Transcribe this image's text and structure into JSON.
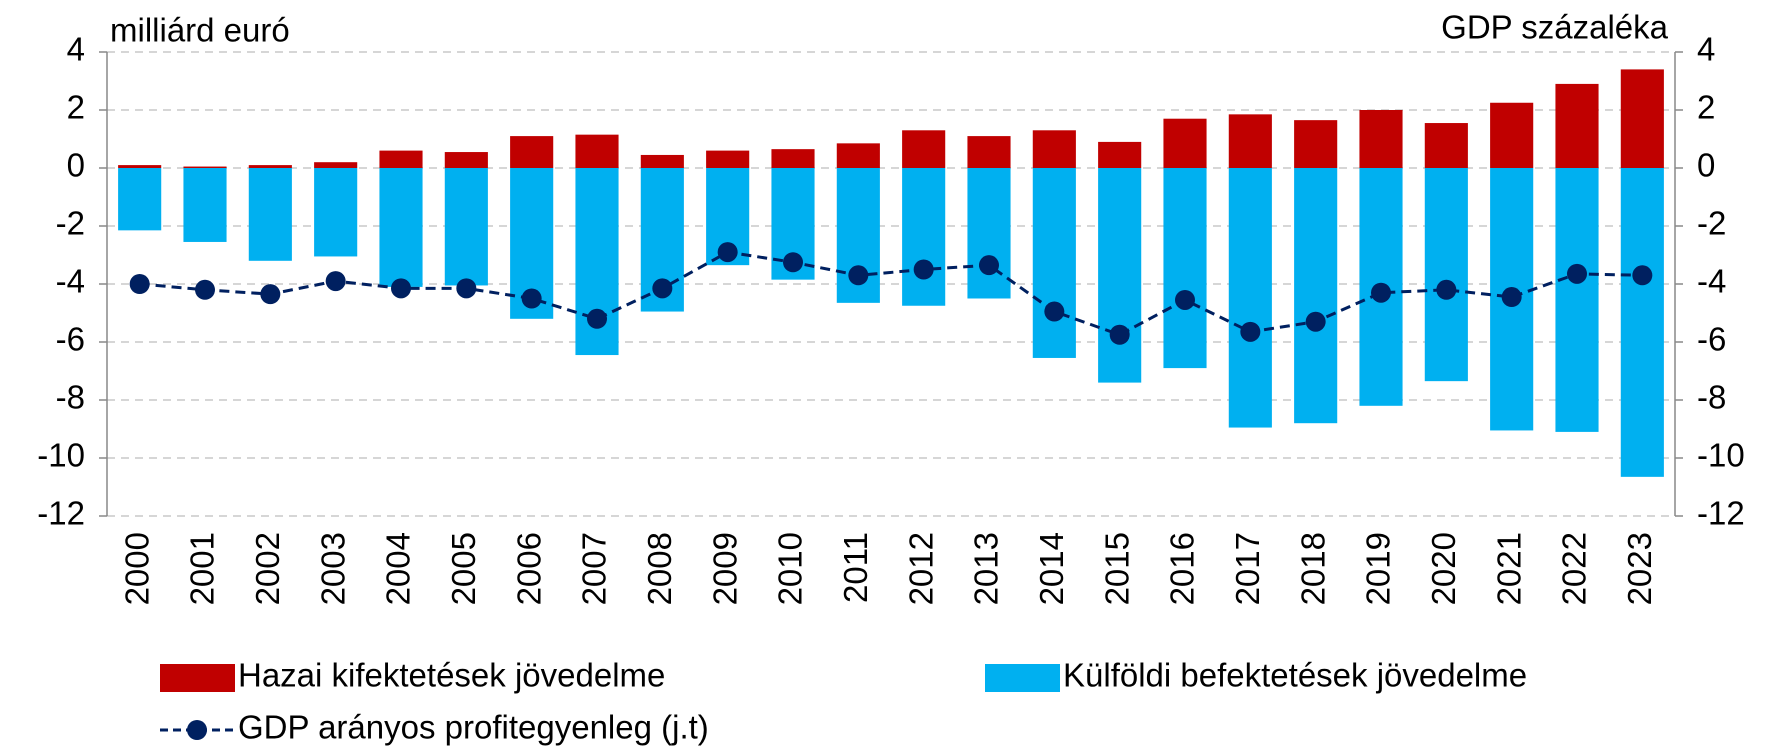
{
  "chart_data": {
    "type": "bar",
    "y_label": "milliárd euró",
    "y2_label": "GDP százaléka",
    "categories": [
      "2000",
      "2001",
      "2002",
      "2003",
      "2004",
      "2005",
      "2006",
      "2007",
      "2008",
      "2009",
      "2010",
      "2011",
      "2012",
      "2013",
      "2014",
      "2015",
      "2016",
      "2017",
      "2018",
      "2019",
      "2020",
      "2021",
      "2022",
      "2023"
    ],
    "series": [
      {
        "name": "Hazai kifektetések jövedelme",
        "type": "bar",
        "color": "#c00000",
        "values": [
          0.1,
          0.05,
          0.1,
          0.2,
          0.6,
          0.55,
          1.1,
          1.15,
          0.45,
          0.6,
          0.65,
          0.85,
          1.3,
          1.1,
          1.3,
          0.9,
          1.7,
          1.85,
          1.65,
          2.0,
          1.55,
          2.25,
          2.9,
          3.4
        ]
      },
      {
        "name": "Külföldi befektetések jövedelme",
        "type": "bar",
        "color": "#00b0f0",
        "values": [
          -2.15,
          -2.55,
          -3.2,
          -3.05,
          -4.1,
          -4.05,
          -5.2,
          -6.45,
          -4.95,
          -3.35,
          -3.85,
          -4.65,
          -4.75,
          -4.5,
          -6.55,
          -7.4,
          -6.9,
          -8.95,
          -8.8,
          -8.2,
          -7.35,
          -9.05,
          -9.1,
          -10.65
        ]
      },
      {
        "name": "GDP arányos profitegyenleg (j.t)",
        "type": "line",
        "axis": "y2",
        "color": "#002060",
        "values": [
          -4.0,
          -4.2,
          -4.35,
          -3.9,
          -4.15,
          -4.15,
          -4.5,
          -5.2,
          -4.15,
          -2.9,
          -3.25,
          -3.7,
          -3.5,
          -3.35,
          -4.95,
          -5.75,
          -4.55,
          -5.65,
          -5.3,
          -4.3,
          -4.2,
          -4.45,
          -3.65,
          -3.7
        ]
      }
    ],
    "ylim": [
      -12,
      4
    ],
    "yticks": [
      -12,
      -10,
      -8,
      -6,
      -4,
      -2,
      0,
      2,
      4
    ],
    "y2lim": [
      -12,
      4
    ],
    "y2ticks": [
      -12,
      -10,
      -8,
      -6,
      -4,
      -2,
      0,
      2,
      4
    ],
    "grid": true
  }
}
